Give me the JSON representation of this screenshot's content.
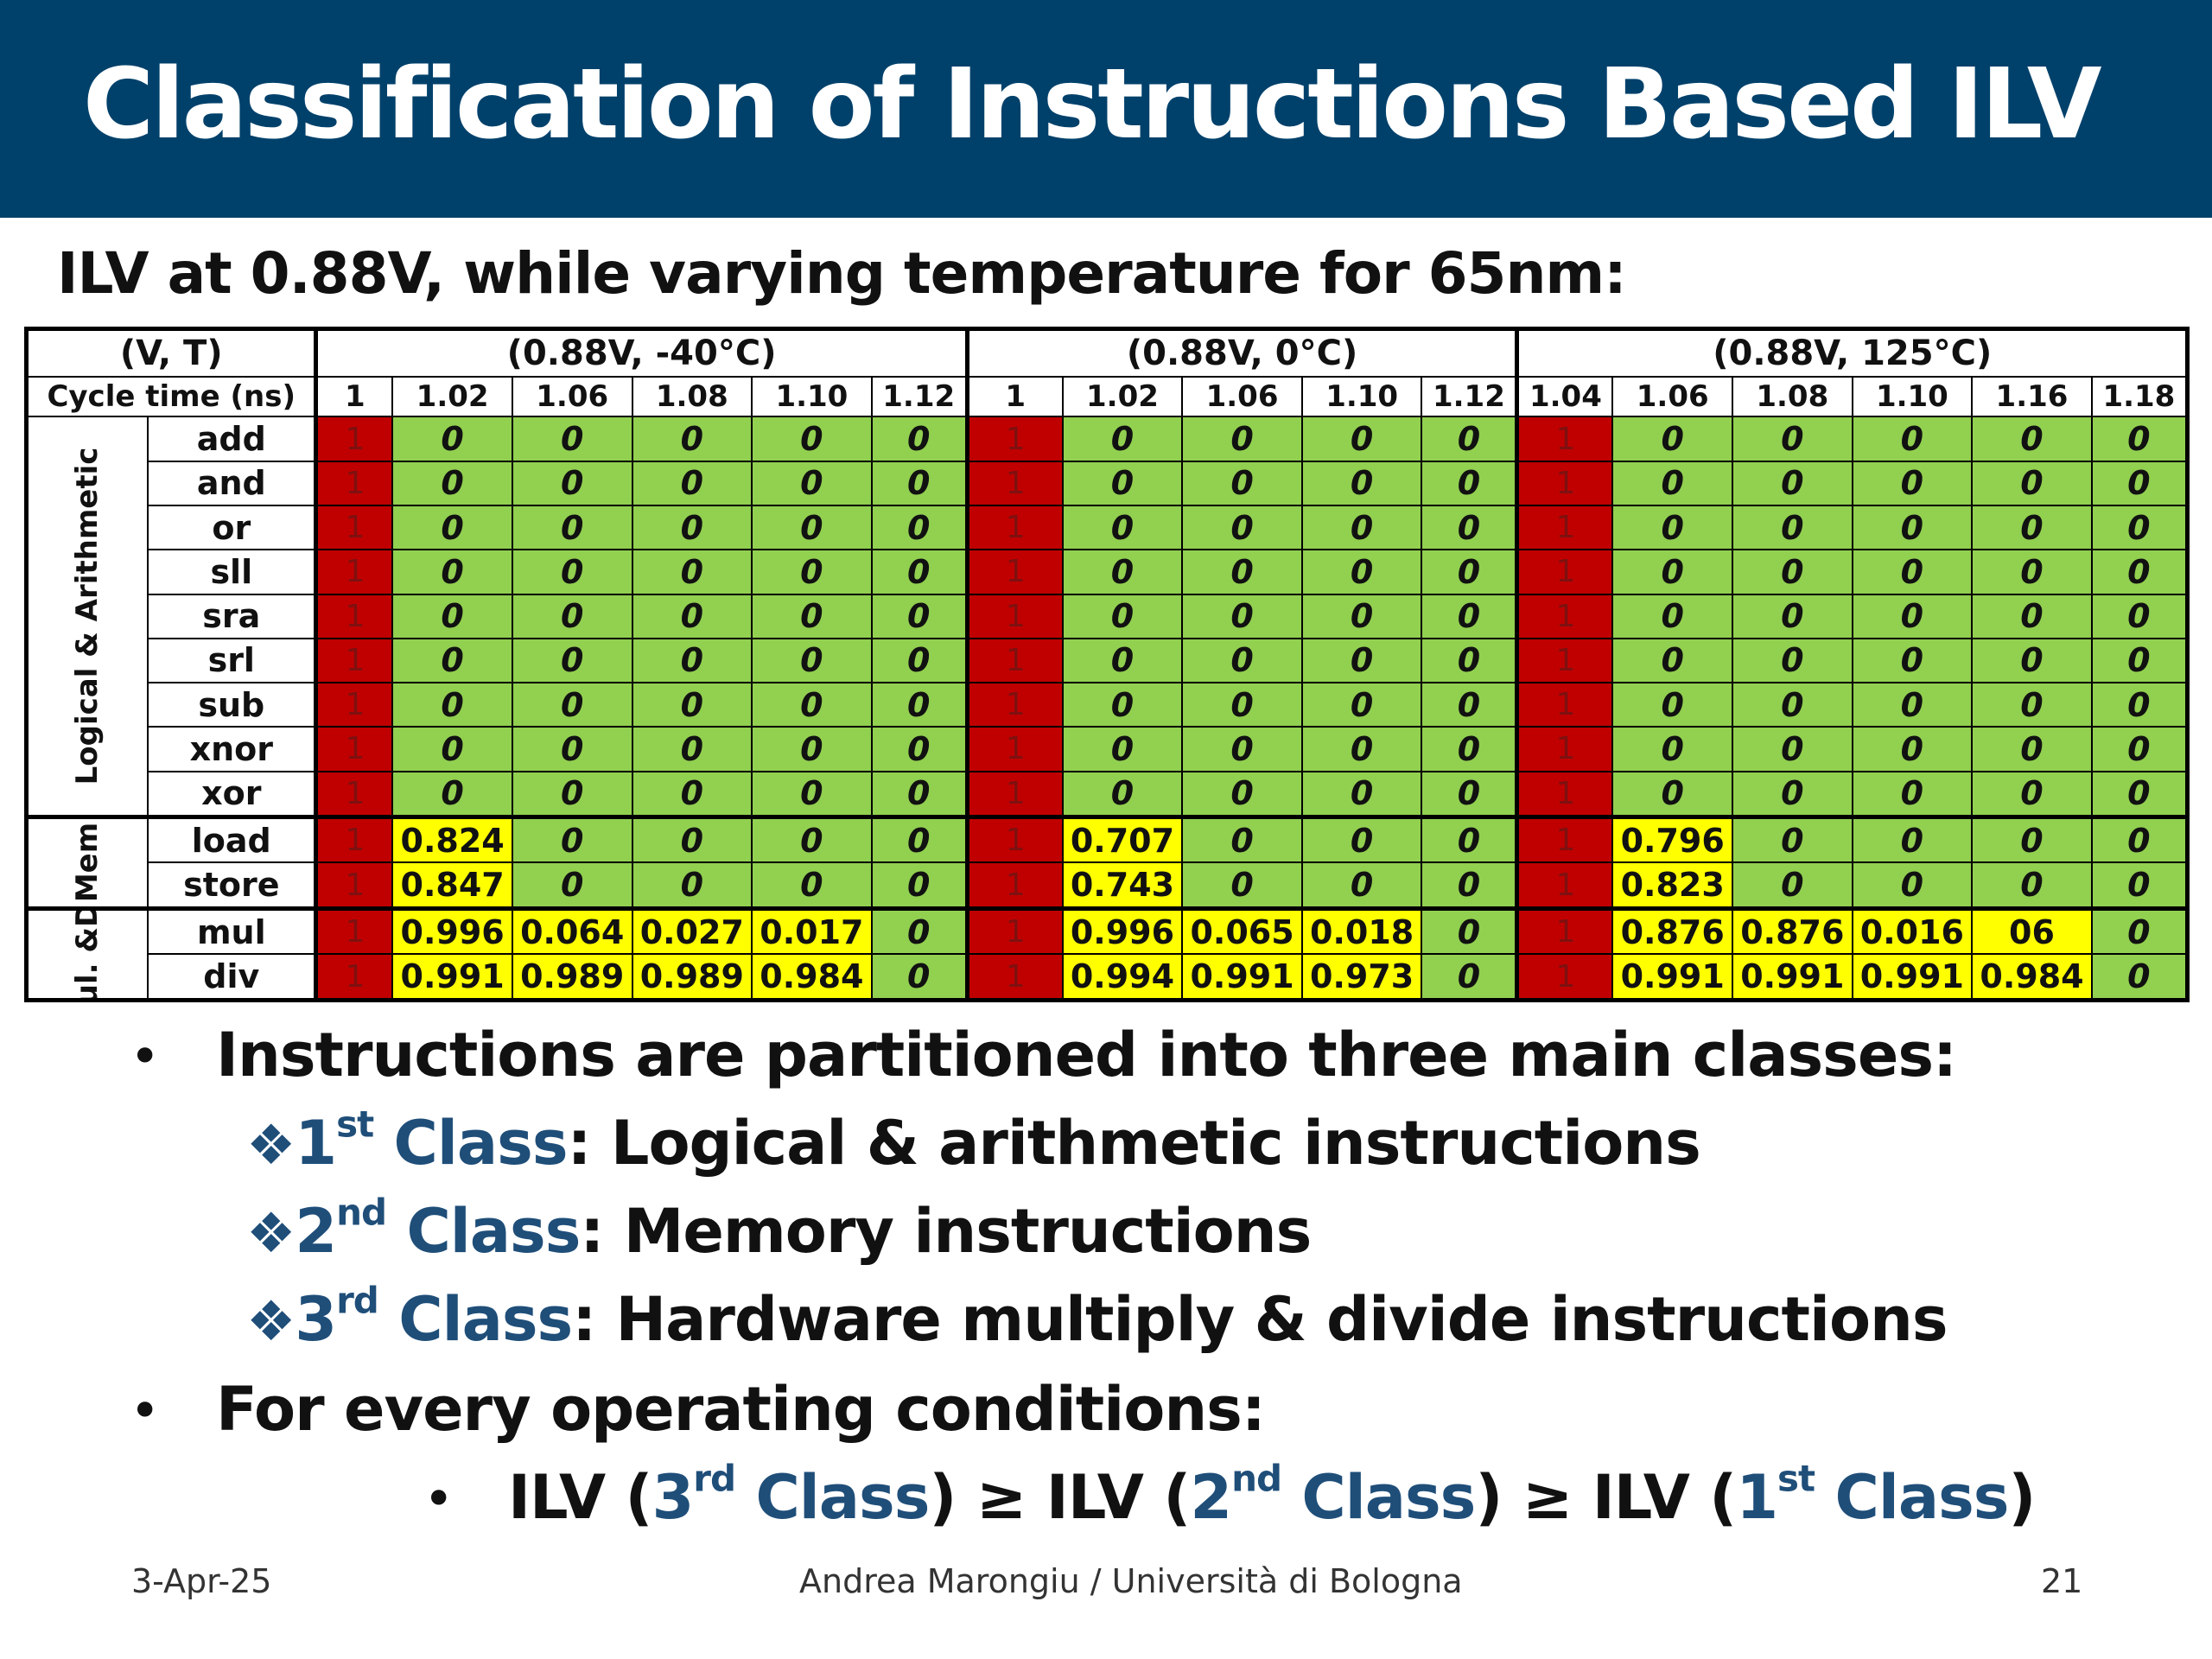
{
  "slide": {
    "title": "Classification of Instructions Based ILV",
    "subtitle": "ILV at 0.88V, while varying temperature for 65nm:"
  },
  "table": {
    "vt_label": "(V, T)",
    "cycle_label": "Cycle time (ns)",
    "conditions": [
      {
        "label": "(0.88V, -40°C)",
        "cycles": [
          "1",
          "1.02",
          "1.06",
          "1.08",
          "1.10",
          "1.12"
        ]
      },
      {
        "label": "(0.88V, 0°C)",
        "cycles": [
          "1",
          "1.02",
          "1.06",
          "1.10",
          "1.12"
        ]
      },
      {
        "label": "(0.88V, 125°C)",
        "cycles": [
          "1.04",
          "1.06",
          "1.08",
          "1.10",
          "1.16",
          "1.18"
        ]
      }
    ],
    "groups": [
      {
        "label": "Logical & Arithmetic",
        "rows": [
          {
            "op": "add",
            "values": [
              "1",
              "0",
              "0",
              "0",
              "0",
              "0",
              "1",
              "0",
              "0",
              "0",
              "0",
              "1",
              "0",
              "0",
              "0",
              "0",
              "0"
            ]
          },
          {
            "op": "and",
            "values": [
              "1",
              "0",
              "0",
              "0",
              "0",
              "0",
              "1",
              "0",
              "0",
              "0",
              "0",
              "1",
              "0",
              "0",
              "0",
              "0",
              "0"
            ]
          },
          {
            "op": "or",
            "values": [
              "1",
              "0",
              "0",
              "0",
              "0",
              "0",
              "1",
              "0",
              "0",
              "0",
              "0",
              "1",
              "0",
              "0",
              "0",
              "0",
              "0"
            ]
          },
          {
            "op": "sll",
            "values": [
              "1",
              "0",
              "0",
              "0",
              "0",
              "0",
              "1",
              "0",
              "0",
              "0",
              "0",
              "1",
              "0",
              "0",
              "0",
              "0",
              "0"
            ]
          },
          {
            "op": "sra",
            "values": [
              "1",
              "0",
              "0",
              "0",
              "0",
              "0",
              "1",
              "0",
              "0",
              "0",
              "0",
              "1",
              "0",
              "0",
              "0",
              "0",
              "0"
            ]
          },
          {
            "op": "srl",
            "values": [
              "1",
              "0",
              "0",
              "0",
              "0",
              "0",
              "1",
              "0",
              "0",
              "0",
              "0",
              "1",
              "0",
              "0",
              "0",
              "0",
              "0"
            ]
          },
          {
            "op": "sub",
            "values": [
              "1",
              "0",
              "0",
              "0",
              "0",
              "0",
              "1",
              "0",
              "0",
              "0",
              "0",
              "1",
              "0",
              "0",
              "0",
              "0",
              "0"
            ]
          },
          {
            "op": "xnor",
            "values": [
              "1",
              "0",
              "0",
              "0",
              "0",
              "0",
              "1",
              "0",
              "0",
              "0",
              "0",
              "1",
              "0",
              "0",
              "0",
              "0",
              "0"
            ]
          },
          {
            "op": "xor",
            "values": [
              "1",
              "0",
              "0",
              "0",
              "0",
              "0",
              "1",
              "0",
              "0",
              "0",
              "0",
              "1",
              "0",
              "0",
              "0",
              "0",
              "0"
            ]
          }
        ]
      },
      {
        "label": "Mem",
        "rows": [
          {
            "op": "load",
            "values": [
              "1",
              "0.824",
              "0",
              "0",
              "0",
              "0",
              "1",
              "0.707",
              "0",
              "0",
              "0",
              "1",
              "0.796",
              "0",
              "0",
              "0",
              "0"
            ]
          },
          {
            "op": "store",
            "values": [
              "1",
              "0.847",
              "0",
              "0",
              "0",
              "0",
              "1",
              "0.743",
              "0",
              "0",
              "0",
              "1",
              "0.823",
              "0",
              "0",
              "0",
              "0"
            ]
          }
        ]
      },
      {
        "label": "Mul. &Div",
        "rows": [
          {
            "op": "mul",
            "values": [
              "1",
              "0.996",
              "0.064",
              "0.027",
              "0.017",
              "0",
              "1",
              "0.996",
              "0.065",
              "0.018",
              "0",
              "1",
              "0.876",
              "0.876",
              "0.016",
              "06",
              "0"
            ]
          },
          {
            "op": "div",
            "values": [
              "1",
              "0.991",
              "0.989",
              "0.989",
              "0.984",
              "0",
              "1",
              "0.994",
              "0.991",
              "0.973",
              "0",
              "1",
              "0.991",
              "0.991",
              "0.991",
              "0.984",
              "0"
            ]
          }
        ]
      }
    ],
    "colors": {
      "fail": "#c00000",
      "pass": "#92d050",
      "partial": "#ffff00"
    }
  },
  "bullets": {
    "intro": "Instructions are partitioned into three main classes:",
    "classes": [
      {
        "num": "1",
        "sup": "st",
        "word": "Class",
        "desc": ": Logical & arithmetic instructions"
      },
      {
        "num": "2",
        "sup": "nd",
        "word": "Class",
        "desc": ": Memory instructions"
      },
      {
        "num": "3",
        "sup": "rd",
        "word": "Class",
        "desc": ": Hardware multiply & divide instructions"
      }
    ],
    "conditions_intro": "For every operating conditions:",
    "ineq": {
      "ilv": "ILV",
      "ge": "≥",
      "class_word": "Class",
      "c3": "3",
      "c3sup": "rd",
      "c2": "2",
      "c2sup": "nd",
      "c1": "1",
      "c1sup": "st"
    },
    "bullet_char": "•",
    "sub_bullet_char": "❖"
  },
  "footer": {
    "date": "3-Apr-25",
    "author": "Andrea Marongiu / Università di Bologna",
    "page": "21"
  }
}
